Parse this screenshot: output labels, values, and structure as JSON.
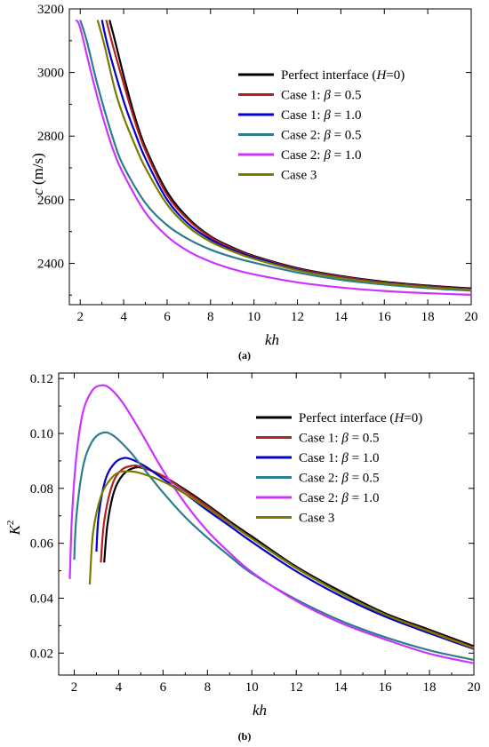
{
  "chart_data": [
    {
      "type": "line",
      "panel_label": "(a)",
      "xlabel": "kh",
      "ylabel": "c (m/s)",
      "ylabel_italic": "c",
      "ylabel_unit": " (m/s)",
      "xlim": [
        1.5,
        20
      ],
      "ylim": [
        2270,
        3200
      ],
      "xticks": [
        2,
        4,
        6,
        8,
        10,
        12,
        14,
        16,
        18,
        20
      ],
      "yticks": [
        2400,
        2600,
        2800,
        3000,
        3200
      ],
      "grid": false,
      "legend_position": "right",
      "series": [
        {
          "name": "Perfect interface (H=0)",
          "color": "#000000",
          "x": [
            3.35,
            3.6,
            4,
            4.5,
            5,
            6,
            7,
            8,
            9,
            10,
            12,
            14,
            16,
            18,
            20
          ],
          "y": [
            3165,
            3100,
            2990,
            2865,
            2765,
            2625,
            2540,
            2485,
            2450,
            2423,
            2385,
            2360,
            2342,
            2330,
            2321
          ]
        },
        {
          "name": "Case 1: β = 0.5",
          "color": "#b22222",
          "x": [
            3.2,
            3.5,
            4,
            4.5,
            5,
            6,
            7,
            8,
            9,
            10,
            12,
            14,
            16,
            18,
            20
          ],
          "y": [
            3165,
            3085,
            2965,
            2850,
            2755,
            2615,
            2535,
            2482,
            2447,
            2421,
            2383,
            2358,
            2340,
            2328,
            2319
          ]
        },
        {
          "name": "Case 1: β = 1.0",
          "color": "#0000cc",
          "x": [
            3.0,
            3.3,
            4,
            4.5,
            5,
            6,
            7,
            8,
            9,
            10,
            12,
            14,
            16,
            18,
            20
          ],
          "y": [
            3165,
            3075,
            2910,
            2815,
            2730,
            2600,
            2523,
            2475,
            2442,
            2418,
            2380,
            2355,
            2338,
            2326,
            2318
          ]
        },
        {
          "name": "Case 2: β = 0.5",
          "color": "#2e7d8c",
          "x": [
            2.0,
            2.3,
            2.8,
            3.5,
            4,
            5,
            6,
            7,
            8,
            9,
            10,
            12,
            14,
            16,
            18,
            20
          ],
          "y": [
            3165,
            3100,
            2960,
            2795,
            2705,
            2590,
            2520,
            2475,
            2443,
            2420,
            2402,
            2371,
            2348,
            2333,
            2322,
            2314
          ]
        },
        {
          "name": "Case 2: β = 1.0",
          "color": "#cc33ff",
          "x": [
            1.8,
            2.0,
            2.5,
            3,
            3.5,
            4,
            5,
            6,
            7,
            8,
            9,
            10,
            12,
            14,
            16,
            18,
            20
          ],
          "y": [
            3165,
            3140,
            3000,
            2870,
            2760,
            2680,
            2560,
            2485,
            2437,
            2405,
            2382,
            2365,
            2340,
            2324,
            2313,
            2306,
            2301
          ]
        },
        {
          "name": "Case 3",
          "color": "#7a7a00",
          "x": [
            2.8,
            3.1,
            3.6,
            4,
            4.5,
            5,
            6,
            7,
            8,
            9,
            10,
            12,
            14,
            16,
            18,
            20
          ],
          "y": [
            3165,
            3090,
            2945,
            2860,
            2775,
            2700,
            2585,
            2513,
            2468,
            2438,
            2414,
            2378,
            2354,
            2337,
            2325,
            2317
          ]
        }
      ]
    },
    {
      "type": "line",
      "panel_label": "(b)",
      "xlabel": "kh",
      "ylabel": "K2",
      "ylabel_base": "K",
      "ylabel_sup": "2",
      "xlim": [
        1.3,
        20
      ],
      "ylim": [
        0.012,
        0.122
      ],
      "xticks": [
        2,
        4,
        6,
        8,
        10,
        12,
        14,
        16,
        18,
        20
      ],
      "yticks": [
        0.02,
        0.04,
        0.06,
        0.08,
        0.1,
        0.12
      ],
      "ytick_labels": [
        "0.02",
        "0.04",
        "0.06",
        "0.08",
        "0.10",
        "0.12"
      ],
      "grid": false,
      "legend_position": "right",
      "series": [
        {
          "name": "Perfect interface (H=0)",
          "color": "#000000",
          "x": [
            3.35,
            3.5,
            3.8,
            4.2,
            4.7,
            5.2,
            6,
            7,
            8,
            9,
            10,
            12,
            14,
            16,
            18,
            20
          ],
          "y": [
            0.053,
            0.067,
            0.079,
            0.085,
            0.0875,
            0.0872,
            0.0845,
            0.0795,
            0.074,
            0.068,
            0.0625,
            0.0515,
            0.0425,
            0.0345,
            0.0285,
            0.0225
          ]
        },
        {
          "name": "Case 1: β = 0.5",
          "color": "#b22222",
          "x": [
            3.2,
            3.35,
            3.7,
            4.1,
            4.6,
            5.0,
            6,
            7,
            8,
            9,
            10,
            12,
            14,
            16,
            18,
            20
          ],
          "y": [
            0.053,
            0.068,
            0.081,
            0.0865,
            0.0882,
            0.0878,
            0.0845,
            0.079,
            0.0735,
            0.0675,
            0.0618,
            0.051,
            0.0418,
            0.034,
            0.028,
            0.022
          ]
        },
        {
          "name": "Case 1: β = 1.0",
          "color": "#0000cc",
          "x": [
            3.0,
            3.1,
            3.4,
            3.8,
            4.2,
            4.6,
            5.2,
            6,
            7,
            8,
            9,
            10,
            12,
            14,
            16,
            18,
            20
          ],
          "y": [
            0.057,
            0.07,
            0.083,
            0.089,
            0.091,
            0.0905,
            0.088,
            0.0835,
            0.078,
            0.072,
            0.0663,
            0.0605,
            0.0498,
            0.0408,
            0.0333,
            0.0272,
            0.0215
          ]
        },
        {
          "name": "Case 2: β = 0.5",
          "color": "#2e7d8c",
          "x": [
            2.0,
            2.1,
            2.4,
            2.8,
            3.3,
            3.8,
            4.5,
            5,
            6,
            7,
            8,
            9,
            10,
            12,
            14,
            16,
            18,
            20
          ],
          "y": [
            0.054,
            0.07,
            0.088,
            0.097,
            0.1003,
            0.099,
            0.0935,
            0.0885,
            0.0785,
            0.0695,
            0.062,
            0.0553,
            0.049,
            0.0395,
            0.0318,
            0.0258,
            0.021,
            0.0175
          ]
        },
        {
          "name": "Case 2: β = 1.0",
          "color": "#cc33ff",
          "x": [
            1.8,
            1.9,
            2.1,
            2.4,
            2.8,
            3.2,
            3.6,
            4.2,
            5,
            6,
            7,
            8,
            9,
            10,
            12,
            14,
            16,
            18,
            20
          ],
          "y": [
            0.047,
            0.07,
            0.092,
            0.108,
            0.1155,
            0.1175,
            0.1165,
            0.111,
            0.1005,
            0.0865,
            0.0745,
            0.0645,
            0.0565,
            0.0495,
            0.039,
            0.031,
            0.025,
            0.0198,
            0.0163
          ]
        },
        {
          "name": "Case 3",
          "color": "#7a7a00",
          "x": [
            2.7,
            2.85,
            3.2,
            3.6,
            4.0,
            4.5,
            5,
            6,
            7,
            8,
            9,
            10,
            12,
            14,
            16,
            18,
            20
          ],
          "y": [
            0.045,
            0.064,
            0.077,
            0.083,
            0.0858,
            0.0862,
            0.0855,
            0.0825,
            0.078,
            0.0728,
            0.0672,
            0.0617,
            0.051,
            0.0418,
            0.034,
            0.0278,
            0.0218
          ]
        }
      ]
    }
  ]
}
